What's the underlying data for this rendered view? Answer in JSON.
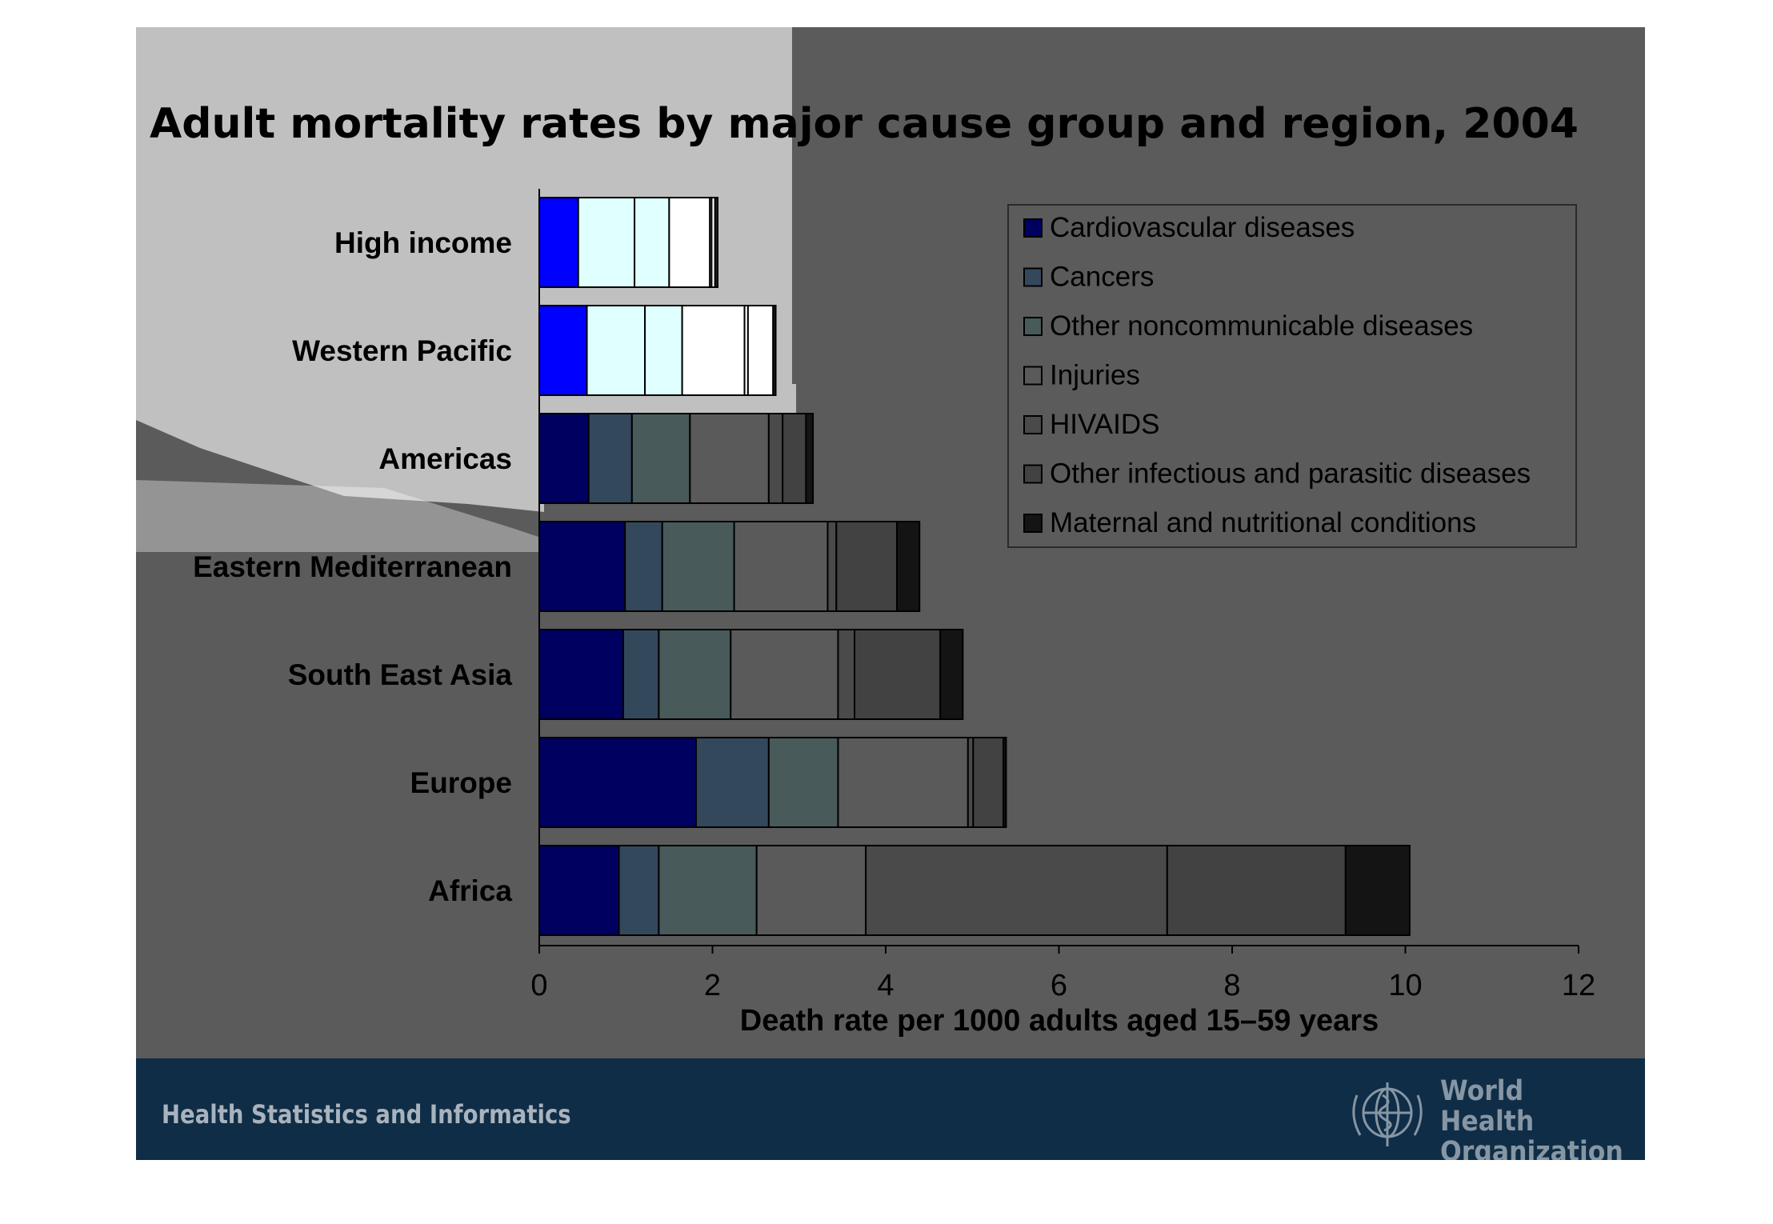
{
  "footer": {
    "department": "Health Statistics and Informatics",
    "organization": "World Health\nOrganization"
  },
  "colors": {
    "slide_bg": "#5b5b5b",
    "footer_bg": "#0f2d46",
    "light_panel": "#ffffff"
  },
  "chart_data": {
    "type": "bar",
    "orientation": "horizontal",
    "stacked": true,
    "title": "Adult mortality rates by major cause group and region, 2004",
    "xlabel": "Death rate per 1000 adults aged 15–59 years",
    "ylabel": "",
    "xlim": [
      0,
      12
    ],
    "xticks": [
      0,
      2,
      4,
      6,
      8,
      10,
      12
    ],
    "grid": false,
    "legend_position": "top-right",
    "categories": [
      "High income",
      "Western Pacific",
      "Americas",
      "Eastern Mediterranean",
      "South East Asia",
      "Europe",
      "Africa"
    ],
    "series": [
      {
        "name": "Cardiovascular diseases",
        "color": "#000060",
        "highlight_color": "#0000ff",
        "values": [
          0.45,
          0.55,
          0.57,
          0.99,
          0.97,
          1.81,
          0.92
        ]
      },
      {
        "name": "Cancers",
        "color": "#34485c",
        "highlight_color": "#e0ffff",
        "values": [
          0.65,
          0.67,
          0.5,
          0.43,
          0.41,
          0.84,
          0.46
        ]
      },
      {
        "name": "Other noncommunicable diseases",
        "color": "#485a5a",
        "highlight_color": "#e0ffff",
        "values": [
          0.4,
          0.43,
          0.67,
          0.83,
          0.83,
          0.8,
          1.13
        ]
      },
      {
        "name": "Injuries",
        "color": "#5a5a5a",
        "highlight_color": "#ffffff",
        "values": [
          0.47,
          0.72,
          0.91,
          1.08,
          1.24,
          1.5,
          1.26
        ]
      },
      {
        "name": "HIVAIDS",
        "color": "#4a4a4a",
        "highlight_color": "#ffffff",
        "values": [
          0.02,
          0.04,
          0.16,
          0.1,
          0.19,
          0.06,
          3.48
        ]
      },
      {
        "name": "Other infectious and parasitic diseases",
        "color": "#424242",
        "highlight_color": "#ffffff",
        "values": [
          0.04,
          0.29,
          0.27,
          0.7,
          0.99,
          0.35,
          2.06
        ]
      },
      {
        "name": "Maternal and nutritional conditions",
        "color": "#141414",
        "highlight_color": "#202020",
        "values": [
          0.03,
          0.03,
          0.08,
          0.26,
          0.26,
          0.03,
          0.74
        ]
      }
    ]
  }
}
